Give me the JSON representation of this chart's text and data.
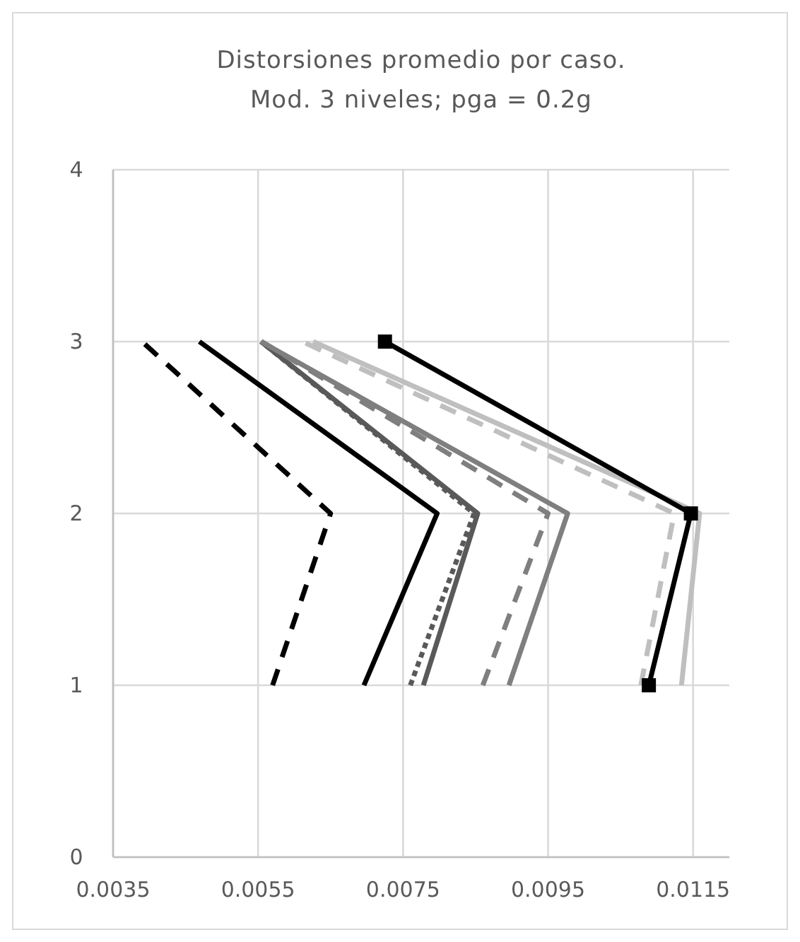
{
  "chart_data": {
    "type": "line",
    "title": "Distorsiones promedio por caso.\nMod. 3 niveles; pga = 0.2g",
    "xlim": [
      0.0035,
      0.012
    ],
    "xticks": [
      0.0035,
      0.0055,
      0.0075,
      0.0095,
      0.0115
    ],
    "ylim": [
      0,
      4
    ],
    "yticks": [
      0,
      1,
      2,
      3,
      4
    ],
    "grid": true,
    "marker": "none",
    "series": [
      {
        "color": "#000000",
        "line_style": "dashed",
        "x": [
          0.0057,
          0.0065,
          0.0039
        ],
        "values": [
          1,
          2,
          3
        ]
      },
      {
        "color": "#000000",
        "line_style": "solid",
        "x": [
          0.00696,
          0.00797,
          0.00469
        ],
        "values": [
          1,
          2,
          3
        ]
      },
      {
        "color": "#595959",
        "line_style": "solid",
        "x": [
          0.00778,
          0.00853,
          0.00554
        ],
        "values": [
          1,
          2,
          3
        ]
      },
      {
        "color": "#595959",
        "line_style": "dotted",
        "x": [
          0.0076,
          0.00848,
          0.00554
        ],
        "values": [
          1,
          2,
          3
        ]
      },
      {
        "color": "#7f7f7f",
        "line_style": "solid",
        "x": [
          0.00896,
          0.00977,
          0.00554
        ],
        "values": [
          1,
          2,
          3
        ]
      },
      {
        "color": "#7f7f7f",
        "line_style": "dashed",
        "x": [
          0.0086,
          0.0095,
          0.00555
        ],
        "values": [
          1,
          2,
          3
        ]
      },
      {
        "color": "#bfbfbf",
        "line_style": "solid",
        "x": [
          0.01134,
          0.01159,
          0.00626
        ],
        "values": [
          1,
          2,
          3
        ]
      },
      {
        "color": "#bfbfbf",
        "line_style": "dashed",
        "x": [
          0.01078,
          0.01124,
          0.00611
        ],
        "values": [
          1,
          2,
          3
        ]
      },
      {
        "color": "#000000",
        "line_style": "solid",
        "marker": "square",
        "x": [
          0.01089,
          0.01147,
          0.00725
        ],
        "values": [
          1,
          2,
          3
        ]
      }
    ]
  }
}
